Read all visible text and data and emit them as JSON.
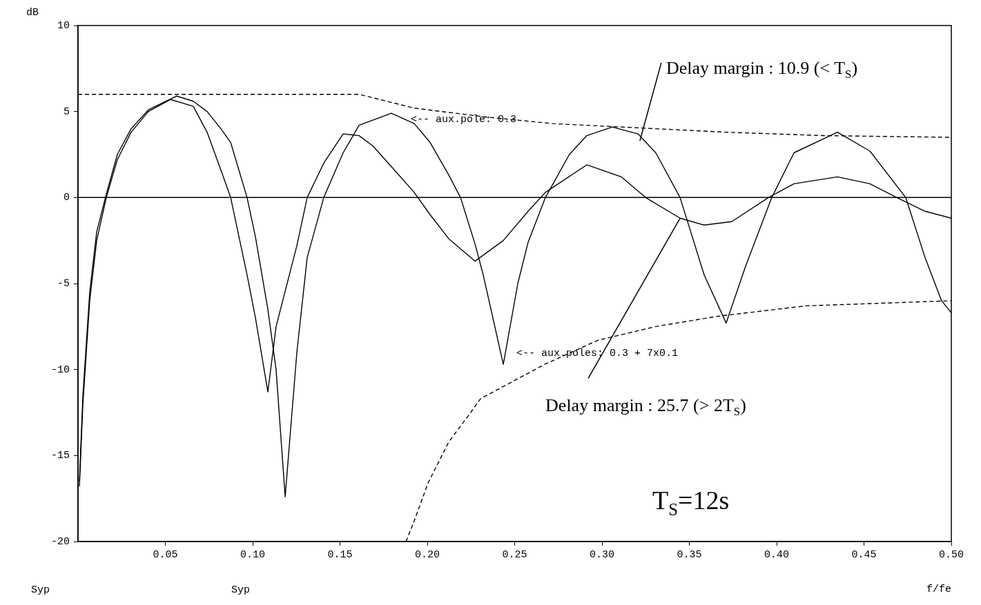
{
  "chart_data": {
    "type": "line",
    "xlabel": "f/fe",
    "ylabel": "dB",
    "xlim": [
      0,
      0.5
    ],
    "ylim": [
      -20,
      10
    ],
    "xticks": [
      {
        "value": 0.05,
        "label": "0.05"
      },
      {
        "value": 0.1,
        "label": "0.10"
      },
      {
        "value": 0.15,
        "label": "0.15"
      },
      {
        "value": 0.2,
        "label": "0.20"
      },
      {
        "value": 0.25,
        "label": "0.25"
      },
      {
        "value": 0.3,
        "label": "0.30"
      },
      {
        "value": 0.35,
        "label": "0.35"
      },
      {
        "value": 0.4,
        "label": "0.40"
      },
      {
        "value": 0.45,
        "label": "0.45"
      },
      {
        "value": 0.5,
        "label": "0.50"
      }
    ],
    "yticks": [
      -20,
      -15,
      -10,
      -5,
      0,
      5,
      10
    ],
    "grid": false,
    "legend": false,
    "marker": "none",
    "ref_lines": [
      {
        "axis": "y",
        "value": 0,
        "color": "#000000"
      }
    ],
    "series": [
      {
        "color": "#000000",
        "line_style": "solid",
        "x": [
          0.0008,
          0.0028,
          0.0067,
          0.0107,
          0.0162,
          0.0225,
          0.0304,
          0.0403,
          0.053,
          0.066,
          0.0739,
          0.0818,
          0.0874,
          0.0968,
          0.1016,
          0.1087,
          0.1134,
          0.1253,
          0.1312,
          0.1407,
          0.1518,
          0.1609,
          0.1688,
          0.1794,
          0.1925,
          0.2016,
          0.2123,
          0.2273,
          0.2435,
          0.2577,
          0.2676,
          0.2913,
          0.3111,
          0.325,
          0.3447,
          0.3585,
          0.3743,
          0.3953,
          0.4099,
          0.4348,
          0.4534,
          0.4688,
          0.485,
          0.5
        ],
        "values": [
          -16.8,
          -12,
          -6,
          -2.5,
          0,
          2.2,
          3.8,
          5,
          5.7,
          5.3,
          3.8,
          1.6,
          0,
          -4.5,
          -7,
          -11.3,
          -7.5,
          -2.8,
          0,
          2,
          3.7,
          3.6,
          3,
          1.8,
          0.3,
          -1,
          -2.4,
          -3.7,
          -2.5,
          -0.8,
          0.3,
          1.9,
          1.2,
          0,
          -1.2,
          -1.6,
          -1.4,
          0,
          0.8,
          1.2,
          0.8,
          0,
          -0.8,
          -1.2
        ]
      },
      {
        "color": "#000000",
        "line_style": "solid",
        "x": [
          0.0008,
          0.0028,
          0.0067,
          0.0107,
          0.0162,
          0.0225,
          0.0304,
          0.0403,
          0.0565,
          0.066,
          0.0739,
          0.0818,
          0.0874,
          0.0968,
          0.1016,
          0.1087,
          0.1134,
          0.1186,
          0.1253,
          0.1312,
          0.1407,
          0.1518,
          0.1609,
          0.1794,
          0.1925,
          0.2016,
          0.2123,
          0.219,
          0.2273,
          0.232,
          0.2435,
          0.2518,
          0.2577,
          0.2676,
          0.2813,
          0.2913,
          0.3059,
          0.3206,
          0.3308,
          0.3447,
          0.3585,
          0.3711,
          0.3822,
          0.3972,
          0.4099,
          0.4348,
          0.4534,
          0.4739,
          0.485,
          0.4944,
          0.5
        ],
        "values": [
          -16.5,
          -11.5,
          -5.5,
          -2,
          0.2,
          2.5,
          4,
          5.1,
          5.9,
          5.6,
          5,
          4,
          3.2,
          0,
          -2.3,
          -6.5,
          -10,
          -17.4,
          -9,
          -3.5,
          0,
          2.6,
          4.2,
          4.9,
          4.3,
          3.2,
          1.3,
          0,
          -2.7,
          -4.5,
          -9.7,
          -5,
          -2.6,
          0,
          2.5,
          3.6,
          4.1,
          3.7,
          2.6,
          0,
          -4.5,
          -7.3,
          -4,
          0,
          2.6,
          3.8,
          2.7,
          0,
          -3.5,
          -6,
          -6.7
        ]
      },
      {
        "color": "#000000",
        "line_style": "dashed",
        "x": [
          0,
          0.1609,
          0.1688,
          0.1925,
          0.232,
          0.2715,
          0.3308,
          0.3706,
          0.4269,
          0.5
        ],
        "values": [
          6,
          6,
          5.8,
          5.2,
          4.7,
          4.3,
          4,
          3.8,
          3.6,
          3.5
        ]
      },
      {
        "color": "#000000",
        "line_style": "dashed",
        "x": [
          0.1878,
          0.1925,
          0.2004,
          0.2123,
          0.2241,
          0.2304,
          0.2672,
          0.2976,
          0.3308,
          0.3664,
          0.4166,
          0.5
        ],
        "values": [
          -20,
          -18.8,
          -16.6,
          -14.2,
          -12.6,
          -11.7,
          -9.7,
          -8.3,
          -7.5,
          -6.9,
          -6.3,
          -6
        ]
      }
    ],
    "annotations": [
      {
        "text": "<-- aux.pole: 0.3",
        "x": 0.1794,
        "y": 4.9
      },
      {
        "text": "<-- aux.poles: 0.3 + 7x0.1",
        "x": 0.2435,
        "y": -9.7
      },
      {
        "text": "Delay margin : 10.9 (< T$_{S}$)",
        "x": 0.3217,
        "y": 3.3
      },
      {
        "text": "Delay margin : 25.7 (> 2T$_{S}$)",
        "x": 0.3447,
        "y": -1.2
      },
      "T$_{S}$=12s",
      "Syp",
      "Syp"
    ]
  }
}
